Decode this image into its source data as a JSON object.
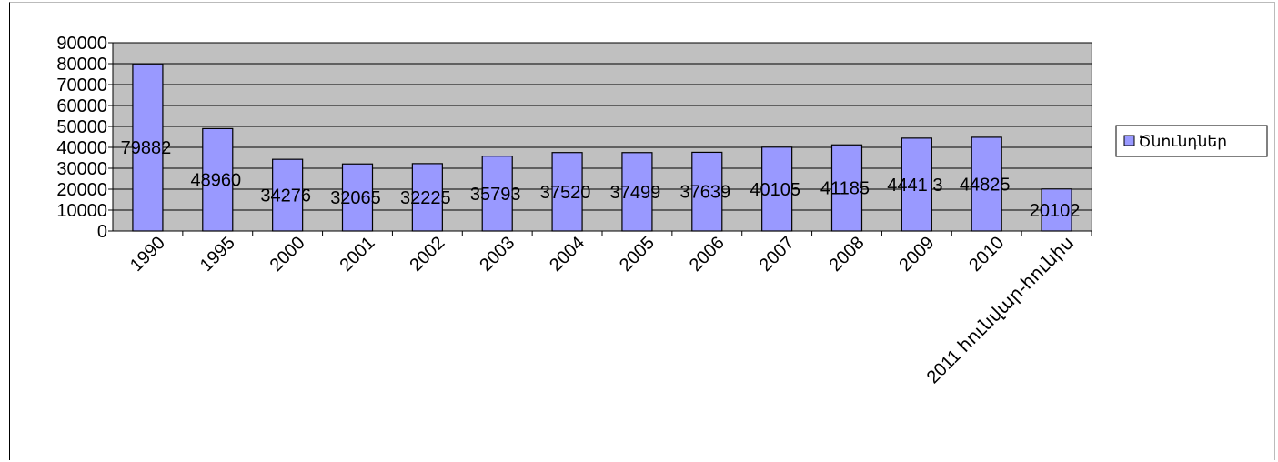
{
  "chart_data": {
    "type": "bar",
    "categories": [
      "1990",
      "1995",
      "2000",
      "2001",
      "2002",
      "2003",
      "2004",
      "2005",
      "2006",
      "2007",
      "2008",
      "2009",
      "2010",
      "2011 հունվար-հունիս"
    ],
    "series": [
      {
        "name": "Ծնունդներ",
        "values": [
          79882,
          48960,
          34276,
          32065,
          32225,
          35793,
          37520,
          37499,
          37639,
          40105,
          41185,
          44413,
          44825,
          20102
        ]
      }
    ],
    "data_labels": [
      "79882",
      "48960",
      "34276",
      "32065",
      "32225",
      "35793",
      "37520",
      "37499",
      "37639",
      "40105",
      "41185",
      "4441 3",
      "44825",
      "20102"
    ],
    "y_ticks": [
      "0",
      "10000",
      "20000",
      "30000",
      "40000",
      "50000",
      "60000",
      "70000",
      "80000",
      "90000"
    ],
    "ylim": [
      0,
      90000
    ],
    "grid": true,
    "legend_position": "right",
    "colors": {
      "bar_fill": "#9999ff",
      "plot_background": "#c0c0c0",
      "bar_stroke": "#000000",
      "gridline": "#000000"
    }
  }
}
